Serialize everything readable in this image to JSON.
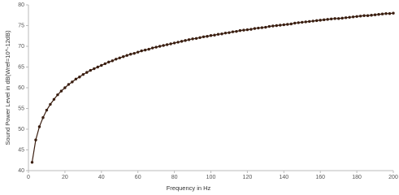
{
  "chart_data": {
    "type": "line",
    "x_label": "Frequency in Hz",
    "y_label": "Sound Power Level in dB(Wref=10^-12dB)",
    "x": [
      2,
      4,
      6,
      8,
      10,
      12,
      14,
      16,
      18,
      20,
      22,
      24,
      26,
      28,
      30,
      32,
      34,
      36,
      38,
      40,
      42,
      44,
      46,
      48,
      50,
      52,
      54,
      56,
      58,
      60,
      62,
      64,
      66,
      68,
      70,
      72,
      74,
      76,
      78,
      80,
      82,
      84,
      86,
      88,
      90,
      92,
      94,
      96,
      98,
      100,
      102,
      104,
      106,
      108,
      110,
      112,
      114,
      116,
      118,
      120,
      122,
      124,
      126,
      128,
      130,
      132,
      134,
      136,
      138,
      140,
      142,
      144,
      146,
      148,
      150,
      152,
      154,
      156,
      158,
      160,
      162,
      164,
      166,
      168,
      170,
      172,
      174,
      176,
      178,
      180,
      182,
      184,
      186,
      188,
      190,
      192,
      194,
      196,
      198,
      200
    ],
    "series": [
      {
        "color": "#3a1e10",
        "values": [
          42.0,
          47.4,
          50.6,
          52.8,
          54.6,
          56.0,
          57.2,
          58.3,
          59.2,
          60.0,
          60.8,
          61.4,
          62.1,
          62.6,
          63.2,
          63.7,
          64.2,
          64.6,
          65.0,
          65.4,
          65.8,
          66.2,
          66.5,
          66.9,
          67.2,
          67.5,
          67.8,
          68.1,
          68.3,
          68.6,
          68.9,
          69.1,
          69.3,
          69.6,
          69.8,
          70.0,
          70.2,
          70.4,
          70.6,
          70.8,
          71.0,
          71.2,
          71.4,
          71.6,
          71.8,
          71.9,
          72.1,
          72.3,
          72.4,
          72.6,
          72.7,
          72.9,
          73.0,
          73.2,
          73.3,
          73.5,
          73.6,
          73.8,
          73.9,
          74.0,
          74.1,
          74.3,
          74.4,
          74.5,
          74.6,
          74.8,
          74.9,
          75.0,
          75.1,
          75.2,
          75.3,
          75.4,
          75.6,
          75.7,
          75.8,
          75.9,
          76.0,
          76.1,
          76.2,
          76.3,
          76.4,
          76.5,
          76.6,
          76.7,
          76.7,
          76.8,
          76.9,
          77.0,
          77.1,
          77.2,
          77.3,
          77.4,
          77.4,
          77.5,
          77.6,
          77.7,
          77.8,
          77.9,
          77.9,
          78.0
        ]
      }
    ],
    "xlim": [
      0,
      200
    ],
    "xticks": [
      0,
      20,
      40,
      60,
      80,
      100,
      120,
      140,
      160,
      180,
      200
    ],
    "ylim": [
      40,
      80
    ],
    "yticks": [
      40,
      45,
      50,
      55,
      60,
      65,
      70,
      75,
      80
    ],
    "markers": true
  }
}
